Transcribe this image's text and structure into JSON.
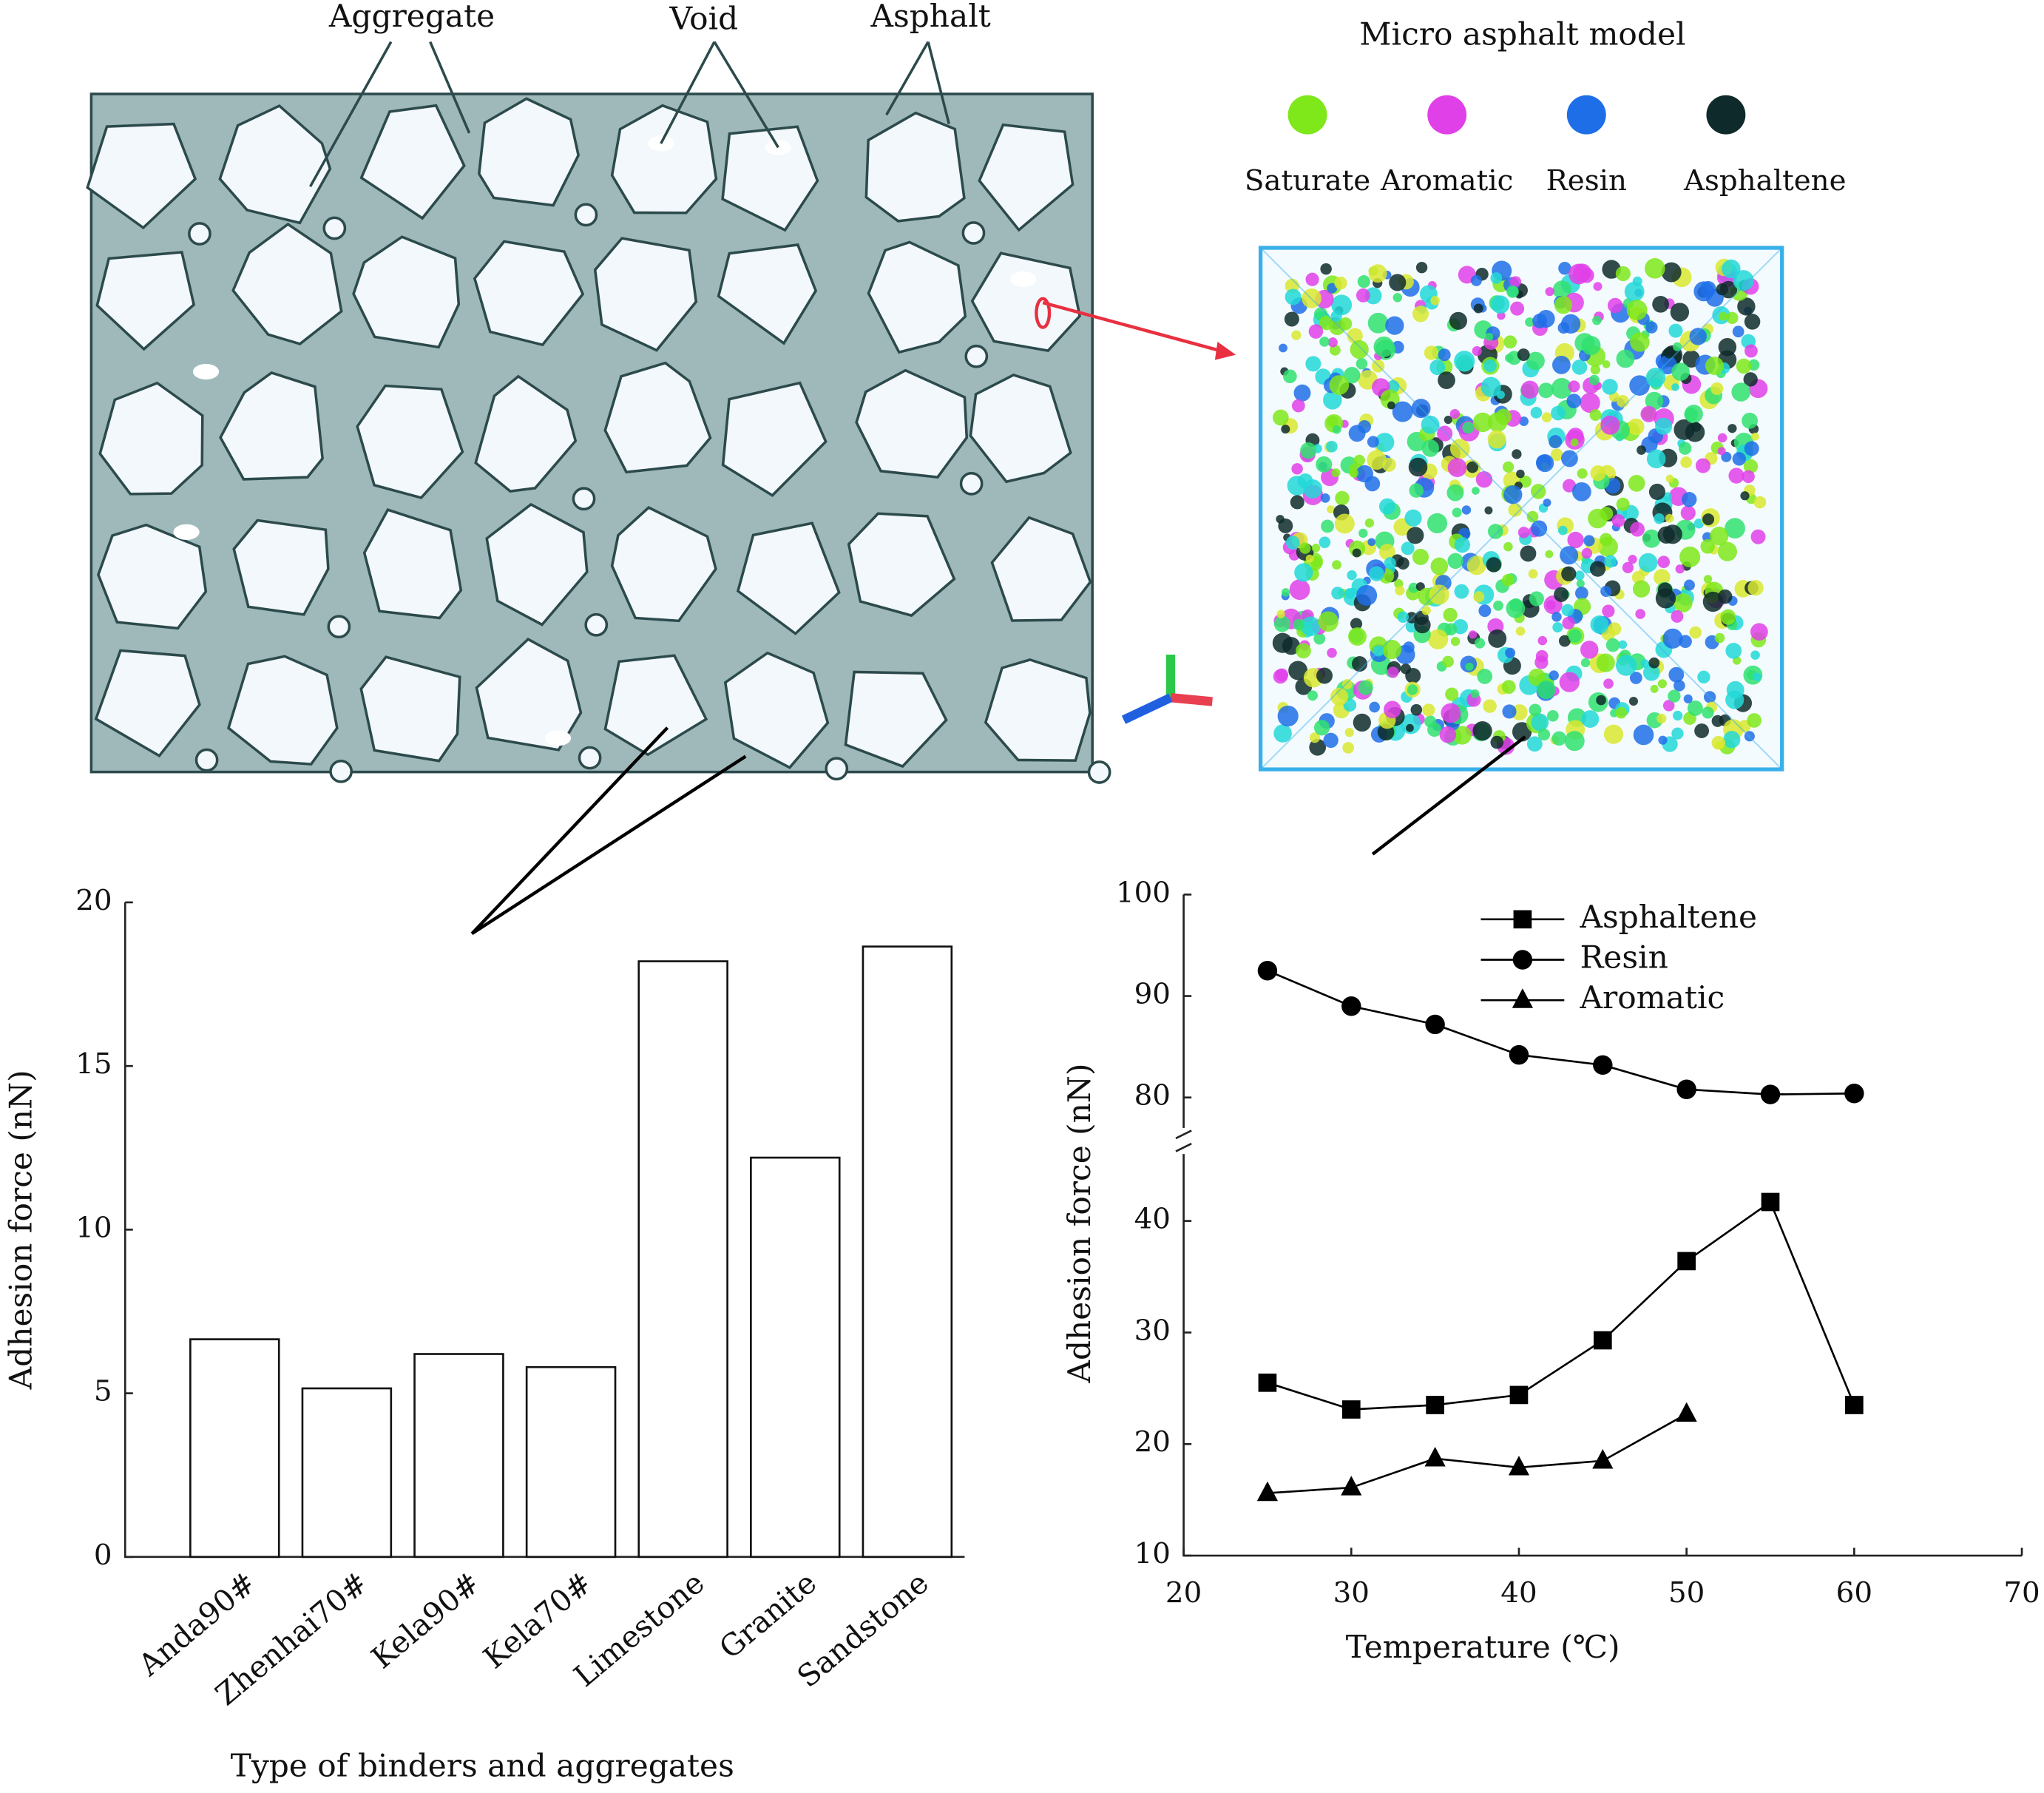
{
  "diagram": {
    "labels": [
      "Aggregate",
      "Void",
      "Asphalt"
    ],
    "model_title": "Micro asphalt model",
    "components": [
      {
        "name": "Saturate",
        "color": "#7ee81a"
      },
      {
        "name": "Aromatic",
        "color": "#e040e8"
      },
      {
        "name": "Resin",
        "color": "#1e6ee8"
      },
      {
        "name": "Asphaltene",
        "color": "#0e2a2a"
      }
    ]
  },
  "chart_data": [
    {
      "type": "bar",
      "xlabel": "Type of binders and aggregates",
      "ylabel": "Adhesion force (nN)",
      "categories": [
        "Anda90#",
        "Zhenhai70#",
        "Kela90#",
        "Kela70#",
        "Limestone",
        "Granite",
        "Sandstone"
      ],
      "values": [
        6.65,
        5.15,
        6.2,
        5.8,
        18.2,
        12.2,
        18.65
      ],
      "color": "#ffffff",
      "ylim": [
        0,
        20
      ],
      "yticks": [
        0,
        5,
        10,
        15,
        20
      ]
    },
    {
      "type": "line",
      "xlabel": "Temperature (℃)",
      "ylabel": "Adhesion force (nN)",
      "x": [
        25,
        30,
        35,
        40,
        45,
        50,
        55,
        60
      ],
      "series": [
        {
          "name": "Asphaltene",
          "color": "#000000",
          "marker": "square",
          "values": [
            25.5,
            23.1,
            23.5,
            24.4,
            29.3,
            36.4,
            41.7,
            23.5
          ]
        },
        {
          "name": "Resin",
          "color": "#000000",
          "marker": "circle",
          "values": [
            92.5,
            89,
            87.2,
            84.2,
            83.2,
            80.8,
            80.3,
            80.4
          ]
        },
        {
          "name": "Aromatic",
          "color": "#000000",
          "marker": "triangle",
          "values": [
            15.6,
            16.1,
            18.7,
            17.9,
            18.5,
            22.7,
            null,
            null
          ]
        }
      ],
      "xlim": [
        20,
        70
      ],
      "xticks": [
        20,
        30,
        40,
        50,
        60,
        70
      ],
      "ylim": [
        10,
        100
      ],
      "ybreak": [
        46,
        77
      ],
      "yticks": [
        10,
        20,
        30,
        40,
        80,
        90,
        100
      ],
      "legend": "upper center"
    }
  ]
}
